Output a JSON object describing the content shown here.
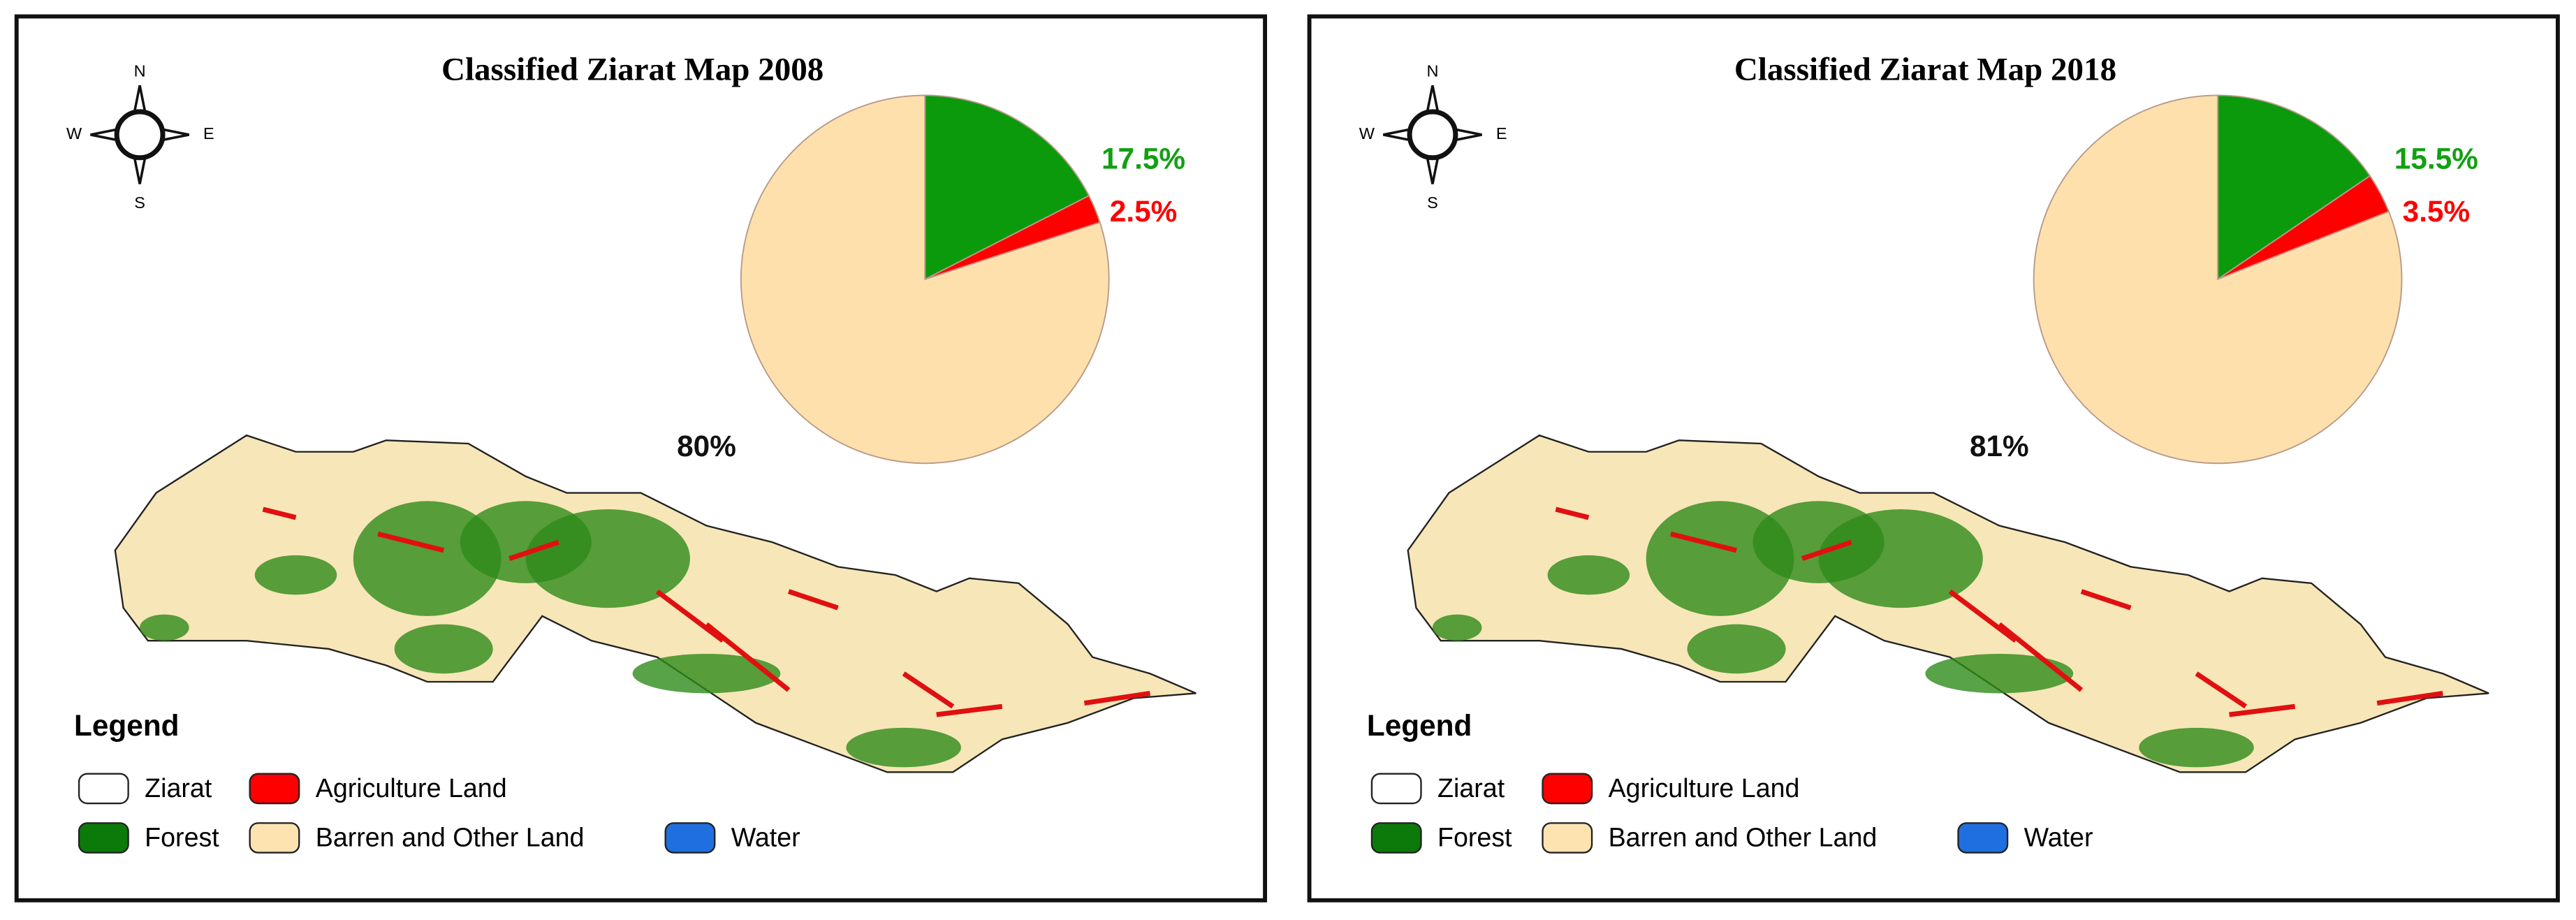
{
  "chart_data": [
    {
      "type": "pie",
      "title": "Classified Ziarat Map 2008",
      "compass": {
        "north": "N",
        "east": "E",
        "south": "S",
        "west": "W"
      },
      "categories": [
        "Forest",
        "Agriculture Land",
        "Barren and Other Land"
      ],
      "values": [
        17.5,
        2.5,
        80
      ],
      "value_labels": [
        "17.5%",
        "2.5%",
        "80%"
      ],
      "colors": [
        "#0b9a0b",
        "#ff0000",
        "#fde0ac"
      ],
      "label_colors": [
        "#12a012",
        "#ff0000",
        "#111111"
      ],
      "legend": {
        "title": "Legend",
        "items": [
          {
            "name": "Ziarat",
            "color": "#ffffff"
          },
          {
            "name": "Agriculture Land",
            "color": "#ff0000"
          },
          {
            "name": "Forest",
            "color": "#0b7a0b"
          },
          {
            "name": "Barren and Other Land",
            "color": "#fde3b0"
          },
          {
            "name": "Water",
            "color": "#1f6fe0"
          }
        ]
      }
    },
    {
      "type": "pie",
      "title": "Classified Ziarat Map 2018",
      "compass": {
        "north": "N",
        "east": "E",
        "south": "S",
        "west": "W"
      },
      "categories": [
        "Forest",
        "Agriculture Land",
        "Barren and Other Land"
      ],
      "values": [
        15.5,
        3.5,
        81
      ],
      "value_labels": [
        "15.5%",
        "3.5%",
        "81%"
      ],
      "colors": [
        "#0b9a0b",
        "#ff0000",
        "#fde0ac"
      ],
      "label_colors": [
        "#12a012",
        "#ff0000",
        "#111111"
      ],
      "legend": {
        "title": "Legend",
        "items": [
          {
            "name": "Ziarat",
            "color": "#ffffff"
          },
          {
            "name": "Agriculture Land",
            "color": "#ff0000"
          },
          {
            "name": "Forest",
            "color": "#0b7a0b"
          },
          {
            "name": "Barren and Other Land",
            "color": "#fde3b0"
          },
          {
            "name": "Water",
            "color": "#1f6fe0"
          }
        ]
      }
    }
  ]
}
